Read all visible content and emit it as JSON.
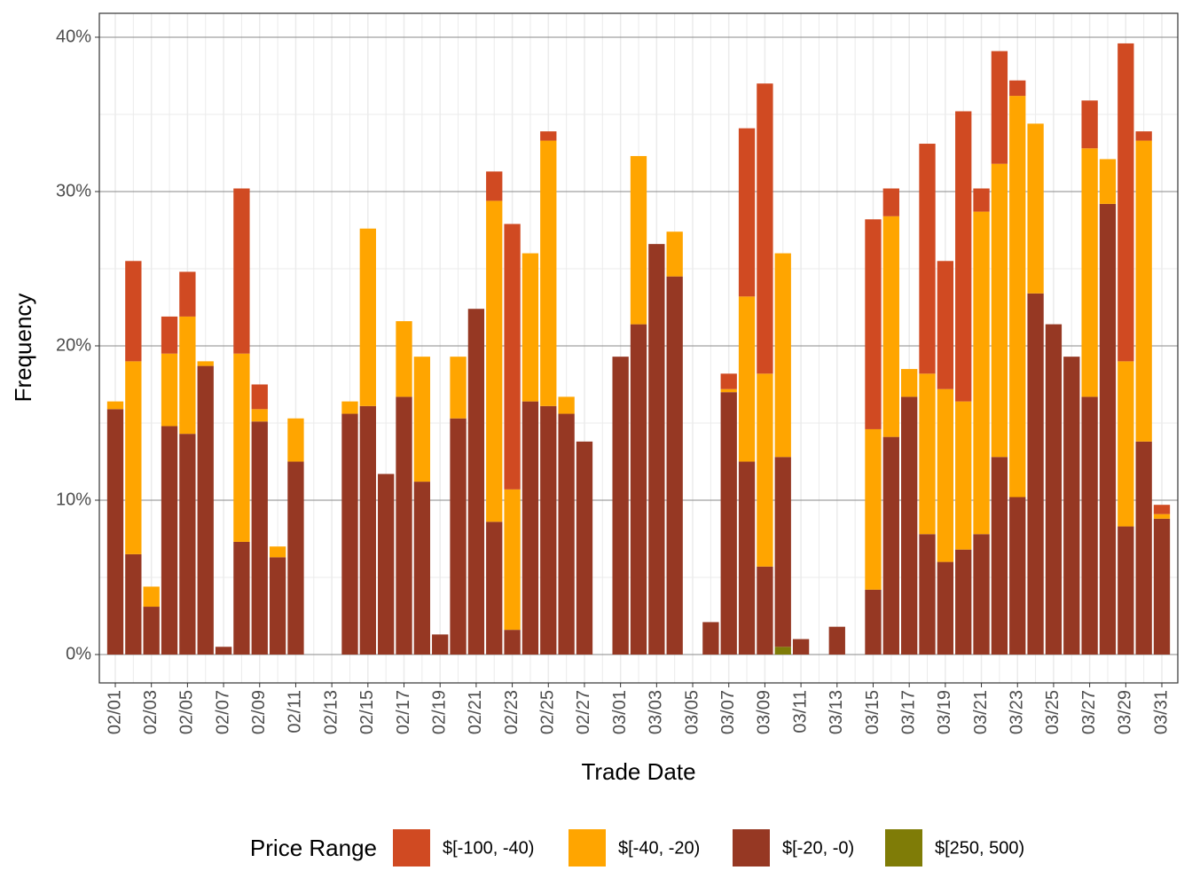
{
  "chart_data": {
    "type": "bar",
    "stacked": true,
    "x_label": "Trade Date",
    "y_label": "Frequency",
    "legend_title": "Price Range",
    "legend_position": "bottom",
    "grid": true,
    "categories": [
      "02/01",
      null,
      "02/03",
      null,
      "02/05",
      null,
      "02/07",
      null,
      "02/09",
      null,
      "02/11",
      null,
      "02/13",
      null,
      "02/15",
      null,
      "02/17",
      null,
      "02/19",
      null,
      "02/21",
      null,
      "02/23",
      null,
      "02/25",
      null,
      "02/27",
      null,
      "03/01",
      null,
      "03/03",
      null,
      "03/05",
      null,
      "03/07",
      null,
      "03/09",
      null,
      "03/11",
      null,
      "03/13",
      null,
      "03/15",
      null,
      "03/17",
      null,
      "03/19",
      null,
      "03/21",
      null,
      "03/23",
      null,
      "03/25",
      null,
      "03/27",
      null,
      "03/29",
      null,
      "03/31"
    ],
    "ylim": [
      -1.84,
      41.55
    ],
    "yticks": [
      {
        "value": 0,
        "label": "0%"
      },
      {
        "value": 10,
        "label": "10%"
      },
      {
        "value": 20,
        "label": "20%"
      },
      {
        "value": 30,
        "label": "30%"
      },
      {
        "value": 40,
        "label": "40%"
      }
    ],
    "series": [
      {
        "name": "$[-100, -40)",
        "color": "#d04a22",
        "values": [
          0,
          6.5,
          0,
          2.4,
          2.9,
          0,
          0,
          10.7,
          1.6,
          0,
          0,
          0,
          0,
          0,
          0,
          0,
          0,
          0,
          0,
          0,
          0,
          1.9,
          17.2,
          0,
          0.6,
          0,
          0,
          0,
          0,
          0,
          0,
          0,
          0,
          0,
          1.0,
          10.9,
          18.8,
          0,
          0,
          0,
          0,
          0,
          13.6,
          1.8,
          0,
          14.9,
          8.3,
          18.8,
          1.5,
          7.3,
          1.0,
          0,
          0,
          0,
          3.1,
          0,
          20.6,
          0.6,
          0.6
        ]
      },
      {
        "name": "$[-40, -20)",
        "color": "#ffa500",
        "values": [
          0.5,
          12.5,
          1.3,
          4.7,
          7.6,
          0.3,
          0,
          12.2,
          0.8,
          0.7,
          2.8,
          0,
          0,
          0.8,
          11.5,
          0,
          4.9,
          8.1,
          0,
          4.0,
          0,
          20.8,
          9.1,
          9.6,
          17.2,
          1.1,
          0,
          0,
          0,
          10.9,
          0,
          2.9,
          0,
          0,
          0.2,
          10.7,
          12.5,
          13.2,
          0,
          0,
          0,
          0,
          10.4,
          14.3,
          1.8,
          10.4,
          11.2,
          9.6,
          20.9,
          19.0,
          26.0,
          11.0,
          0,
          0,
          16.1,
          2.9,
          10.7,
          19.5,
          0.3
        ]
      },
      {
        "name": "$[-20, -0)",
        "color": "#963823",
        "values": [
          15.9,
          6.5,
          3.1,
          14.8,
          14.3,
          18.7,
          0.5,
          7.3,
          15.1,
          6.3,
          12.5,
          0,
          0,
          15.6,
          16.1,
          11.7,
          16.7,
          11.2,
          1.3,
          15.3,
          22.4,
          8.6,
          1.6,
          16.4,
          16.1,
          15.6,
          13.8,
          0,
          19.3,
          21.4,
          26.6,
          24.5,
          0,
          2.1,
          17.0,
          12.5,
          5.7,
          12.3,
          1.0,
          0,
          1.8,
          0,
          4.2,
          14.1,
          16.7,
          7.8,
          6.0,
          6.8,
          7.8,
          12.8,
          10.2,
          23.4,
          21.4,
          19.3,
          16.7,
          29.2,
          8.3,
          13.8,
          8.8
        ]
      },
      {
        "name": "$[250, 500)",
        "color": "#7f7c07",
        "values": [
          0,
          0,
          0,
          0,
          0,
          0,
          0,
          0,
          0,
          0,
          0,
          0,
          0,
          0,
          0,
          0,
          0,
          0,
          0,
          0,
          0,
          0,
          0,
          0,
          0,
          0,
          0,
          0,
          0,
          0,
          0,
          0,
          0,
          0,
          0,
          0,
          0,
          0.5,
          0,
          0,
          0,
          0,
          0,
          0,
          0,
          0,
          0,
          0,
          0,
          0,
          0,
          0,
          0,
          0,
          0,
          0,
          0,
          0,
          0
        ]
      }
    ]
  }
}
